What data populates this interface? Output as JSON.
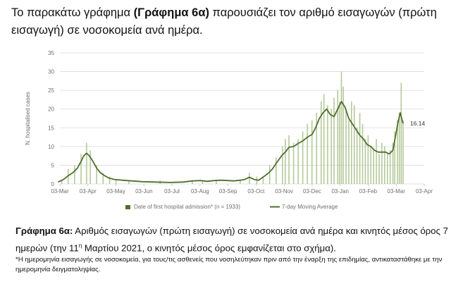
{
  "intro": {
    "part1": "Το παρακάτω γράφημα ",
    "bold": "(Γράφημα 6α)",
    "part2": " παρουσιάζει τον αριθμό εισαγωγών (πρώτη εισαγωγή) σε νοσοκομεία ανά ημέρα."
  },
  "caption": {
    "bold": "Γράφημα 6α:",
    "part1": " Αριθμός εισαγωγών (πρώτη εισαγωγή) σε νοσοκομεία ανά ημέρα και κινητός μέσος όρος 7 ημερών (την 11",
    "sup": "η",
    "part2": " Μαρτίου 2021, ο κινητός μέσος όρος εμφανίζεται στο σχήμα)."
  },
  "footnote": "*Η ημερομηνία εισαγωγής σε νοσοκομεία, για τους/τις ασθενείς που νοσηλεύτηκαν πριν από την έναρξη της επιδημίας, αντικαταστάθηκε με την ημερομηνία δειγματοληψίας.",
  "colors": {
    "bar": "#b5c99a",
    "line": "#4f6f2c",
    "grid": "#d9d9d9",
    "axis_text": "#6e6e6e"
  },
  "chart_data": {
    "type": "bar",
    "ylabel": "N. hospitalised cases",
    "ylim": [
      0,
      35
    ],
    "y_ticks": [
      "0",
      "5",
      "10",
      "15",
      "20",
      "25",
      "30",
      "35"
    ],
    "x_ticks": [
      "03-Mar",
      "03-Apr",
      "03-May",
      "03-Jun",
      "03-Jul",
      "03-Aug",
      "03-Sep",
      "03-Oct",
      "03-Nov",
      "03-Dec",
      "03-Jan",
      "03-Feb",
      "03-Mar",
      "03-Apr"
    ],
    "grid": "horizontal",
    "legend_position": "bottom",
    "annotation": "16.14",
    "series": [
      {
        "name": "Date of first hospital admission* (n = 1933)",
        "type": "bar",
        "x": [
          "2020-03-05",
          "2020-03-12",
          "2020-03-19",
          "2020-03-26",
          "2020-04-01",
          "2020-04-05",
          "2020-04-12",
          "2020-04-19",
          "2020-04-26",
          "2020-05-03",
          "2020-05-17",
          "2020-06-01",
          "2020-06-20",
          "2020-07-10",
          "2020-07-25",
          "2020-08-05",
          "2020-08-20",
          "2020-09-01",
          "2020-09-15",
          "2020-09-25",
          "2020-10-03",
          "2020-10-10",
          "2020-10-17",
          "2020-10-24",
          "2020-10-31",
          "2020-11-03",
          "2020-11-07",
          "2020-11-12",
          "2020-11-17",
          "2020-11-22",
          "2020-11-27",
          "2020-12-02",
          "2020-12-07",
          "2020-12-12",
          "2020-12-15",
          "2020-12-19",
          "2020-12-23",
          "2020-12-26",
          "2020-12-30",
          "2021-01-01",
          "2021-01-03",
          "2021-01-05",
          "2021-01-08",
          "2021-01-11",
          "2021-01-14",
          "2021-01-17",
          "2021-01-20",
          "2021-01-23",
          "2021-01-26",
          "2021-01-29",
          "2021-02-01",
          "2021-02-04",
          "2021-02-07",
          "2021-02-10",
          "2021-02-13",
          "2021-02-16",
          "2021-02-19",
          "2021-02-22",
          "2021-02-25",
          "2021-02-28",
          "2021-03-02",
          "2021-03-05",
          "2021-03-07",
          "2021-03-09",
          "2021-03-11"
        ],
        "values": [
          1,
          4,
          5,
          8,
          11,
          9,
          5,
          3,
          2,
          1,
          1,
          0,
          1,
          0,
          1,
          1,
          1,
          0,
          1,
          3,
          2,
          2,
          5,
          7,
          10,
          12,
          13,
          11,
          12,
          14,
          16,
          17,
          19,
          22,
          24,
          21,
          20,
          23,
          25,
          22,
          30,
          26,
          20,
          17,
          22,
          21,
          15,
          19,
          16,
          12,
          13,
          10,
          9,
          12,
          8,
          11,
          10,
          8,
          9,
          11,
          14,
          17,
          19,
          27,
          17
        ]
      },
      {
        "name": "7-day Moving Average",
        "type": "line",
        "x": [
          "2020-03-01",
          "2020-03-07",
          "2020-03-12",
          "2020-03-17",
          "2020-03-22",
          "2020-03-26",
          "2020-03-29",
          "2020-04-01",
          "2020-04-04",
          "2020-04-08",
          "2020-04-12",
          "2020-04-16",
          "2020-04-20",
          "2020-04-25",
          "2020-05-01",
          "2020-05-10",
          "2020-05-20",
          "2020-06-01",
          "2020-06-15",
          "2020-07-01",
          "2020-07-15",
          "2020-07-25",
          "2020-08-03",
          "2020-08-10",
          "2020-08-18",
          "2020-08-25",
          "2020-09-01",
          "2020-09-08",
          "2020-09-15",
          "2020-09-20",
          "2020-09-25",
          "2020-09-30",
          "2020-10-05",
          "2020-10-08",
          "2020-10-12",
          "2020-10-16",
          "2020-10-20",
          "2020-10-25",
          "2020-10-30",
          "2020-11-03",
          "2020-11-07",
          "2020-11-12",
          "2020-11-17",
          "2020-11-22",
          "2020-11-27",
          "2020-12-02",
          "2020-12-06",
          "2020-12-10",
          "2020-12-14",
          "2020-12-18",
          "2020-12-22",
          "2020-12-26",
          "2020-12-30",
          "2021-01-03",
          "2021-01-07",
          "2021-01-11",
          "2021-01-15",
          "2021-01-19",
          "2021-01-23",
          "2021-01-27",
          "2021-01-31",
          "2021-02-04",
          "2021-02-08",
          "2021-02-12",
          "2021-02-16",
          "2021-02-20",
          "2021-02-24",
          "2021-02-28",
          "2021-03-03",
          "2021-03-06",
          "2021-03-08",
          "2021-03-10",
          "2021-03-11"
        ],
        "values": [
          0.5,
          1.2,
          2.2,
          3.0,
          4.2,
          6.0,
          7.5,
          8.2,
          7.5,
          6.0,
          4.2,
          3.0,
          2.3,
          1.6,
          1.2,
          1.0,
          0.8,
          0.6,
          0.5,
          0.4,
          0.5,
          0.8,
          0.9,
          0.7,
          0.9,
          1.0,
          0.9,
          0.8,
          1.0,
          1.2,
          1.8,
          1.2,
          1.0,
          1.5,
          2.2,
          3.0,
          4.0,
          5.8,
          7.5,
          8.5,
          9.8,
          10.0,
          10.8,
          11.5,
          12.5,
          13.2,
          15.0,
          17.5,
          19.0,
          20.0,
          18.5,
          18.0,
          20.0,
          22.0,
          20.5,
          17.5,
          16.0,
          14.5,
          13.0,
          12.0,
          10.5,
          10.0,
          9.0,
          8.5,
          8.5,
          8.5,
          8.0,
          9.0,
          13.0,
          17.0,
          19.0,
          17.0,
          16.14
        ]
      }
    ]
  }
}
